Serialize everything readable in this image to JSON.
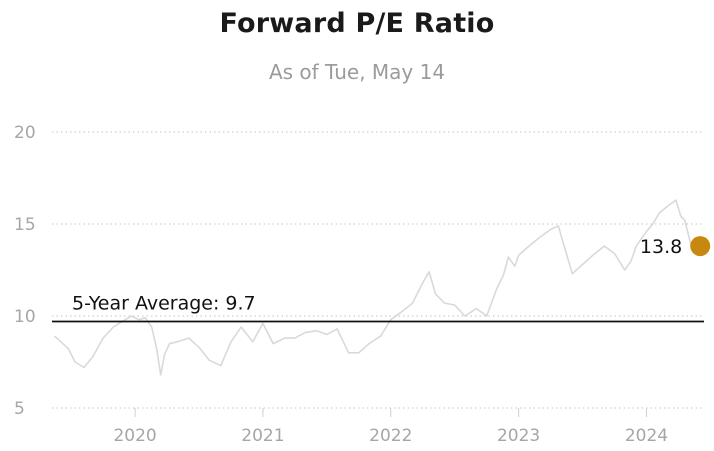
{
  "chart_data": {
    "type": "line",
    "title": "Forward P/E Ratio",
    "subtitle": "As of Tue, May 14",
    "xlabel": "",
    "ylabel": "",
    "ylim": [
      5,
      20
    ],
    "xlim": [
      2019.35,
      2024.45
    ],
    "y_ticks": [
      "20",
      "15",
      "10",
      "5"
    ],
    "y_tick_values": [
      20,
      15,
      10,
      5
    ],
    "x_ticks": [
      "2020",
      "2021",
      "2022",
      "2023",
      "2024"
    ],
    "x_tick_values": [
      2020,
      2021,
      2022,
      2023,
      2024
    ],
    "grid": "horizontal dotted",
    "series": [
      {
        "x": [
          2019.37,
          2019.42,
          2019.48,
          2019.53,
          2019.6,
          2019.67,
          2019.75,
          2019.83,
          2019.9,
          2019.97,
          2020.03,
          2020.08,
          2020.13,
          2020.17,
          2020.2,
          2020.23,
          2020.27,
          2020.33,
          2020.42,
          2020.5,
          2020.58,
          2020.67,
          2020.75,
          2020.83,
          2020.92,
          2021.0,
          2021.08,
          2021.17,
          2021.25,
          2021.33,
          2021.42,
          2021.5,
          2021.58,
          2021.67,
          2021.75,
          2021.83,
          2021.92,
          2022.0,
          2022.08,
          2022.17,
          2022.25,
          2022.3,
          2022.35,
          2022.42,
          2022.5,
          2022.58,
          2022.67,
          2022.75,
          2022.83,
          2022.88,
          2022.92,
          2022.97,
          2023.0,
          2023.08,
          2023.17,
          2023.25,
          2023.31,
          2023.36,
          2023.42,
          2023.5,
          2023.58,
          2023.67,
          2023.75,
          2023.83,
          2023.88,
          2023.92,
          2024.0,
          2024.05,
          2024.1,
          2024.17,
          2024.23,
          2024.27,
          2024.3,
          2024.35
        ],
        "values": [
          8.9,
          8.6,
          8.2,
          7.5,
          7.2,
          7.8,
          8.8,
          9.4,
          9.7,
          10.0,
          9.8,
          9.9,
          9.4,
          8.2,
          6.8,
          7.9,
          8.5,
          8.6,
          8.8,
          8.3,
          7.6,
          7.3,
          8.6,
          9.4,
          8.6,
          9.6,
          8.5,
          8.8,
          8.8,
          9.1,
          9.2,
          9.0,
          9.3,
          8.0,
          8.0,
          8.5,
          8.9,
          9.8,
          10.2,
          10.7,
          11.8,
          12.4,
          11.2,
          10.7,
          10.6,
          10.0,
          10.4,
          10.0,
          11.5,
          12.2,
          13.2,
          12.7,
          13.3,
          13.8,
          14.3,
          14.7,
          14.9,
          13.7,
          12.3,
          12.8,
          13.3,
          13.8,
          13.4,
          12.5,
          13.0,
          13.8,
          14.6,
          15.0,
          15.6,
          16.0,
          16.3,
          15.4,
          15.2,
          13.8
        ]
      }
    ],
    "reference_line": {
      "label": "5-Year Average: 9.7",
      "value": 9.7
    },
    "end_point": {
      "label": "13.8",
      "value": 13.8
    },
    "colors": {
      "series": "#d9d9d9",
      "average_line": "#111111",
      "end_point": "#c8880f",
      "grid": "#cfcfcf",
      "ticks": "#a6a6a6"
    }
  }
}
